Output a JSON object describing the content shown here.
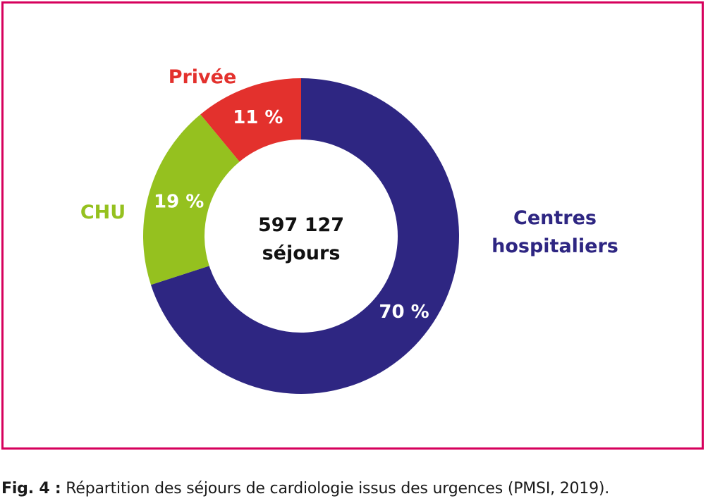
{
  "chart_data": {
    "type": "pie",
    "subtype": "donut",
    "center_text": [
      "597 127",
      "séjours"
    ],
    "slices": [
      {
        "label": "Privée",
        "value": 11,
        "value_label": "11 %",
        "color": "#E3312D"
      },
      {
        "label": "Centres hospitaliers",
        "label_lines": [
          "Centres",
          "hospitaliers"
        ],
        "value": 70,
        "value_label": "70 %",
        "color": "#2E2682"
      },
      {
        "label": "CHU",
        "value": 19,
        "value_label": "19 %",
        "color": "#95C11F"
      }
    ],
    "border_color": "#D6005C"
  },
  "caption": {
    "label": "Fig. 4 :",
    "text": "Répartition des séjours de cardiologie issus des urgences (PMSI, 2019)."
  }
}
